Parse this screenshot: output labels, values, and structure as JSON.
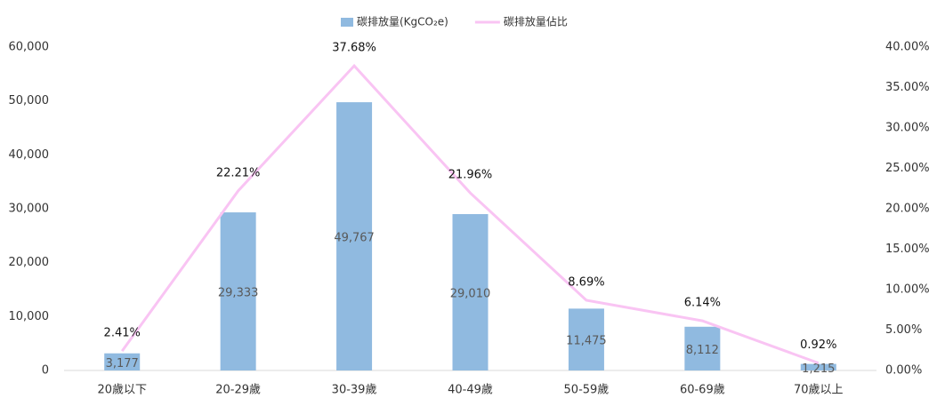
{
  "chart_data": {
    "type": "bar",
    "categories": [
      "20歲以下",
      "20-29歲",
      "30-39歲",
      "40-49歲",
      "50-59歲",
      "60-69歲",
      "70歲以上"
    ],
    "series": [
      {
        "name": "碳排放量(KgCO₂e)",
        "type": "bar",
        "color": "#90bae0",
        "values": [
          3177,
          29333,
          49767,
          29010,
          11475,
          8112,
          1215
        ],
        "value_labels": [
          "3,177",
          "29,333",
          "49,767",
          "29,010",
          "11,475",
          "8,112",
          "1,215"
        ]
      },
      {
        "name": "碳排放量佔比",
        "type": "line",
        "axis": "y2",
        "color": "#f9c4f3",
        "values": [
          2.41,
          22.21,
          37.68,
          21.96,
          8.69,
          6.14,
          0.92
        ],
        "value_labels": [
          "2.41%",
          "22.21%",
          "37.68%",
          "21.96%",
          "8.69%",
          "6.14%",
          "0.92%"
        ]
      }
    ],
    "ylim": [
      0,
      60000
    ],
    "yticks": [
      0,
      {
        "value": 10000,
        "label": "10,000"
      },
      {
        "value": 20000,
        "label": "20,000"
      },
      {
        "value": 30000,
        "label": "30,000"
      },
      {
        "value": 40000,
        "label": "40,000"
      },
      {
        "value": 50000,
        "label": "50,000"
      },
      {
        "value": 60000,
        "label": "60,000"
      }
    ],
    "y2lim": [
      0,
      40
    ],
    "y2ticks": [
      {
        "value": 0,
        "label": "0.00%"
      },
      {
        "value": 5,
        "label": "5.00%"
      },
      {
        "value": 10,
        "label": "10.00%"
      },
      {
        "value": 15,
        "label": "15.00%"
      },
      {
        "value": 20,
        "label": "20.00%"
      },
      {
        "value": 25,
        "label": "25.00%"
      },
      {
        "value": 30,
        "label": "30.00%"
      },
      {
        "value": 35,
        "label": "35.00%"
      },
      {
        "value": 40,
        "label": "40.00%"
      }
    ],
    "legend": "top"
  }
}
